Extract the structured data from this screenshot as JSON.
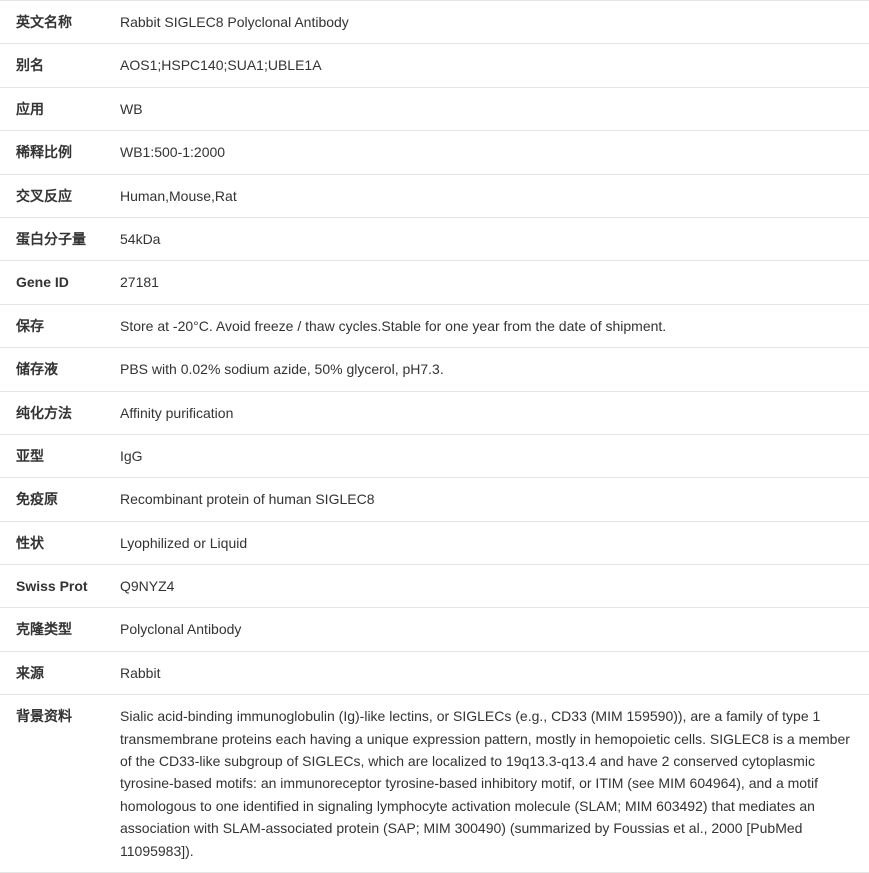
{
  "rows": [
    {
      "label": "英文名称",
      "value": "Rabbit SIGLEC8 Polyclonal Antibody"
    },
    {
      "label": "别名",
      "value": "AOS1;HSPC140;SUA1;UBLE1A"
    },
    {
      "label": "应用",
      "value": "WB"
    },
    {
      "label": "稀释比例",
      "value": "WB1:500-1:2000"
    },
    {
      "label": "交叉反应",
      "value": "Human,Mouse,Rat"
    },
    {
      "label": "蛋白分子量",
      "value": "54kDa"
    },
    {
      "label": "Gene ID",
      "value": "27181"
    },
    {
      "label": "保存",
      "value": "Store at -20°C. Avoid freeze / thaw cycles.Stable for one year from the date of shipment."
    },
    {
      "label": "储存液",
      "value": "PBS with 0.02% sodium azide, 50% glycerol, pH7.3."
    },
    {
      "label": "纯化方法",
      "value": "Affinity purification"
    },
    {
      "label": "亚型",
      "value": "IgG"
    },
    {
      "label": "免疫原",
      "value": "Recombinant protein of human SIGLEC8"
    },
    {
      "label": "性状",
      "value": "Lyophilized or Liquid"
    },
    {
      "label": "Swiss Prot",
      "value": "Q9NYZ4"
    },
    {
      "label": "克隆类型",
      "value": "Polyclonal Antibody"
    },
    {
      "label": "来源",
      "value": "Rabbit"
    },
    {
      "label": "背景资料",
      "value": "Sialic acid-binding immunoglobulin (Ig)-like lectins, or SIGLECs (e.g., CD33 (MIM 159590)), are a family of type 1 transmembrane proteins each having a unique expression pattern, mostly in hemopoietic cells. SIGLEC8 is a member of the CD33-like subgroup of SIGLECs, which are localized to 19q13.3-q13.4 and have 2 conserved cytoplasmic tyrosine-based motifs: an immunoreceptor tyrosine-based inhibitory motif, or ITIM (see MIM 604964), and a motif homologous to one identified in signaling lymphocyte activation molecule (SLAM; MIM 603492) that mediates an association with SLAM-associated protein (SAP; MIM 300490) (summarized by Foussias et al., 2000 [PubMed 11095983])."
    }
  ],
  "styles": {
    "border_color": "#e5e5e5",
    "text_color": "#333333",
    "background_color": "#ffffff",
    "font_size": 14,
    "label_width": 120,
    "row_min_height": 40
  }
}
